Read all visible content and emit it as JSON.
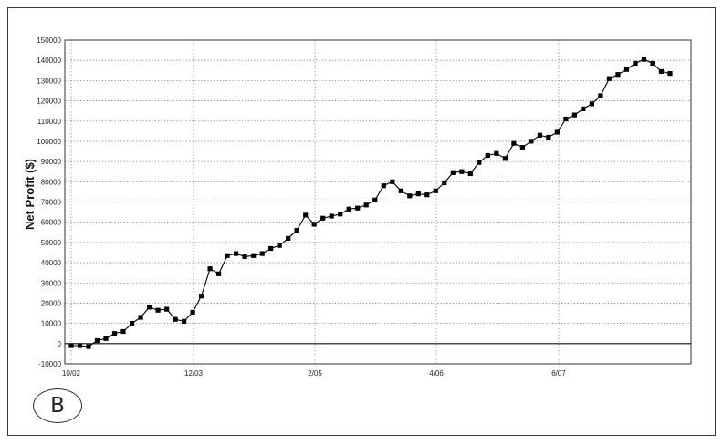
{
  "figure_badge": "B",
  "chart_data": {
    "type": "line",
    "title": "",
    "xlabel": "",
    "ylabel": "Net Profit ($)",
    "ylim": [
      -10000,
      150000
    ],
    "yticks": [
      -10000,
      0,
      10000,
      20000,
      30000,
      40000,
      50000,
      60000,
      70000,
      80000,
      90000,
      100000,
      110000,
      120000,
      130000,
      140000,
      150000
    ],
    "xtick_labels": [
      "10/02",
      "12/03",
      "2/05",
      "4/06",
      "6/07"
    ],
    "grid": true,
    "legend": "none",
    "line_color": "#000000",
    "marker": "square",
    "series": [
      {
        "values": [
          -1000,
          -1000,
          -1500,
          1500,
          2500,
          5000,
          6000,
          10000,
          13000,
          18000,
          16500,
          17000,
          12000,
          11000,
          15500,
          23500,
          37000,
          34500,
          43500,
          44500,
          43000,
          43500,
          44500,
          47000,
          48500,
          52000,
          56000,
          63500,
          59000,
          62000,
          63000,
          64000,
          66500,
          67000,
          68500,
          71000,
          78000,
          80000,
          75500,
          73000,
          74000,
          73500,
          75500,
          79500,
          84500,
          85000,
          84000,
          89500,
          93000,
          94000,
          91500,
          99000,
          97000,
          100000,
          103000,
          102000,
          104500,
          111000,
          113000,
          116000,
          118500,
          122500,
          131000,
          133000,
          135500,
          138500,
          140500,
          138500,
          134500,
          133500
        ]
      }
    ]
  }
}
